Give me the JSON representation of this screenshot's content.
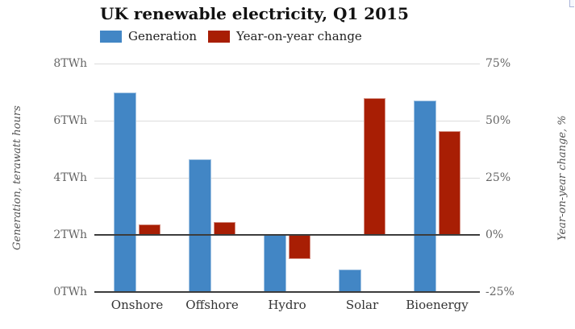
{
  "chart_data": {
    "type": "bar",
    "title": "UK renewable electricity, Q1 2015",
    "categories": [
      "Onshore",
      "Offshore",
      "Hydro",
      "Solar",
      "Bioenergy"
    ],
    "series": [
      {
        "name": "Generation",
        "axis": "left",
        "unit": "TWh",
        "color": "#4286c5",
        "values": [
          7.0,
          4.65,
          2.0,
          0.8,
          6.7
        ]
      },
      {
        "name": "Year-on-year change",
        "axis": "right",
        "unit": "%",
        "color": "#a81e04",
        "values": [
          4.5,
          5.5,
          -10.5,
          60,
          45.5
        ]
      }
    ],
    "left_axis": {
      "label": "Generation, terawatt hours",
      "ticks": [
        "8TWh",
        "6TWh",
        "4TWh",
        "2TWh",
        "0TWh"
      ],
      "tick_values": [
        8,
        6,
        4,
        2,
        0
      ],
      "range": [
        0,
        8
      ]
    },
    "right_axis": {
      "label": "Year-on-year change, %",
      "ticks": [
        "75%",
        "50%",
        "25%",
        "0%",
        "-25%"
      ],
      "tick_values": [
        75,
        50,
        25,
        0,
        -25
      ],
      "range": [
        -25,
        75
      ]
    },
    "legend_position": "top",
    "grid": true,
    "colors": {
      "background": "#ffffff",
      "gridline_light": "#dcdcdc",
      "gridline_dark": "#3c3c3c",
      "title_text": "#121212",
      "tick_text": "#666666",
      "category_text": "#333333",
      "axis_title_text": "#555555"
    }
  }
}
